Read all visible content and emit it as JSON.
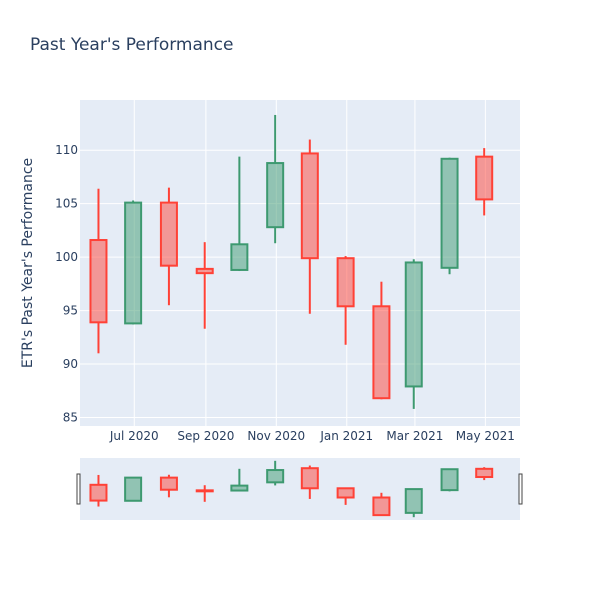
{
  "chart_data": {
    "type": "candlestick",
    "title": "Past Year's Performance",
    "ylabel": "ETR's Past Year's Performance",
    "xlabel": "",
    "ylim": [
      84.2,
      114.7
    ],
    "x_range": [
      "2020-05-15",
      "2021-05-31"
    ],
    "y_ticks": [
      85,
      90,
      95,
      100,
      105,
      110
    ],
    "x_ticks": [
      {
        "date": "2020-07-01",
        "label": "Jul 2020"
      },
      {
        "date": "2020-09-01",
        "label": "Sep 2020"
      },
      {
        "date": "2020-11-01",
        "label": "Nov 2020"
      },
      {
        "date": "2021-01-01",
        "label": "Jan 2021"
      },
      {
        "date": "2021-03-01",
        "label": "Mar 2021"
      },
      {
        "date": "2021-05-01",
        "label": "May 2021"
      }
    ],
    "increasing_color": "#3d9970",
    "decreasing_color": "#ff4136",
    "candles": [
      {
        "date": "2020-05-31",
        "open": 101.6,
        "high": 106.4,
        "low": 91.0,
        "close": 93.9
      },
      {
        "date": "2020-06-30",
        "open": 93.8,
        "high": 105.3,
        "low": 93.7,
        "close": 105.1
      },
      {
        "date": "2020-07-31",
        "open": 105.1,
        "high": 106.5,
        "low": 95.5,
        "close": 99.2
      },
      {
        "date": "2020-08-31",
        "open": 98.9,
        "high": 101.4,
        "low": 93.3,
        "close": 98.5
      },
      {
        "date": "2020-09-30",
        "open": 98.8,
        "high": 109.4,
        "low": 98.7,
        "close": 101.2
      },
      {
        "date": "2020-10-31",
        "open": 102.8,
        "high": 113.3,
        "low": 101.3,
        "close": 108.8
      },
      {
        "date": "2020-11-30",
        "open": 109.7,
        "high": 111.0,
        "low": 94.7,
        "close": 99.9
      },
      {
        "date": "2020-12-31",
        "open": 99.9,
        "high": 100.1,
        "low": 91.8,
        "close": 95.4
      },
      {
        "date": "2021-01-31",
        "open": 95.4,
        "high": 97.7,
        "low": 86.7,
        "close": 86.8
      },
      {
        "date": "2021-02-28",
        "open": 87.9,
        "high": 99.8,
        "low": 85.8,
        "close": 99.5
      },
      {
        "date": "2021-03-31",
        "open": 99.0,
        "high": 109.3,
        "low": 98.4,
        "close": 109.2
      },
      {
        "date": "2021-04-30",
        "open": 109.4,
        "high": 110.2,
        "low": 103.9,
        "close": 105.4
      }
    ]
  }
}
